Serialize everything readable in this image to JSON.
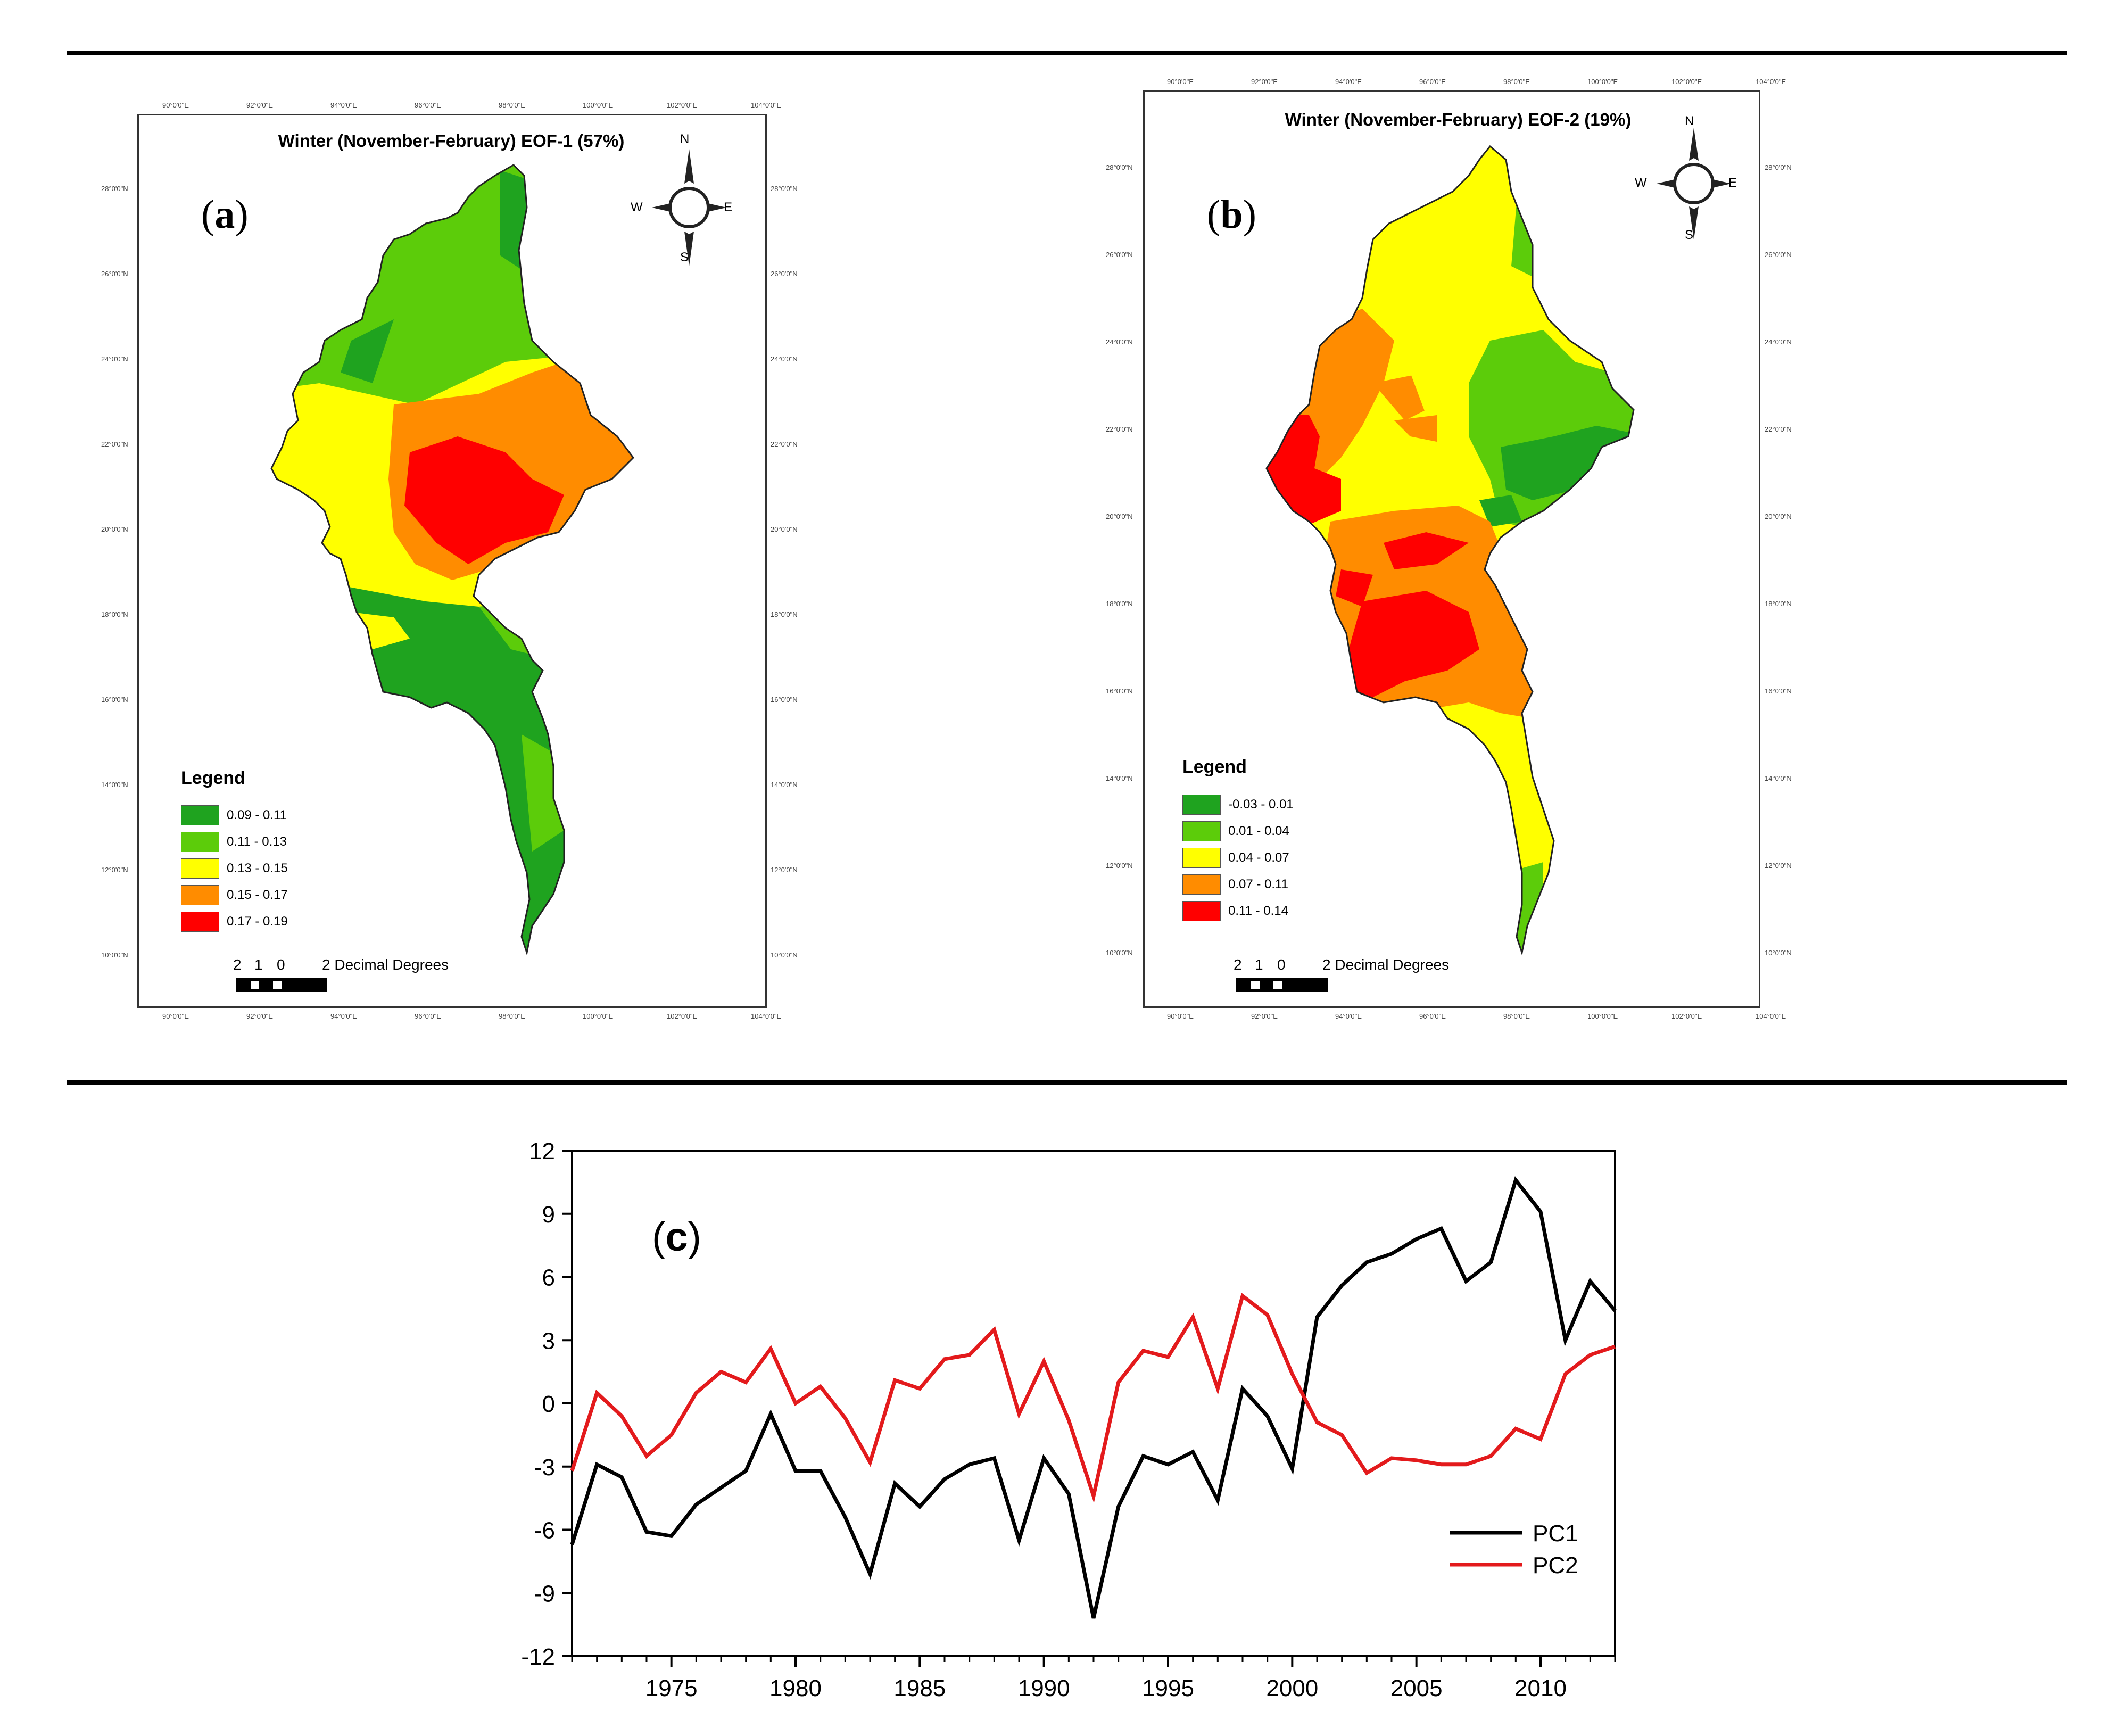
{
  "panel_a": {
    "label_letter": "a",
    "title": "Winter (November-February) EOF-1 (57%)",
    "legend": {
      "title": "Legend",
      "items": [
        {
          "label": "0.09 - 0.11",
          "color": "#1fa31f"
        },
        {
          "label": "0.11 - 0.13",
          "color": "#5ccc0a"
        },
        {
          "label": "0.13 - 0.15",
          "color": "#ffff00"
        },
        {
          "label": "0.15 - 0.17",
          "color": "#ff8c00"
        },
        {
          "label": "0.17 - 0.19",
          "color": "#ff0000"
        }
      ]
    }
  },
  "panel_b": {
    "label_letter": "b",
    "title": "Winter (November-February) EOF-2 (19%)",
    "legend": {
      "title": "Legend",
      "items": [
        {
          "label": "-0.03 - 0.01",
          "color": "#1fa31f"
        },
        {
          "label": "0.01 - 0.04",
          "color": "#5ccc0a"
        },
        {
          "label": "0.04 - 0.07",
          "color": "#ffff00"
        },
        {
          "label": "0.07 - 0.11",
          "color": "#ff8c00"
        },
        {
          "label": "0.11 - 0.14",
          "color": "#ff0000"
        }
      ]
    }
  },
  "map_common": {
    "lon_labels": [
      "90°0'0\"E",
      "92°0'0\"E",
      "94°0'0\"E",
      "96°0'0\"E",
      "98°0'0\"E",
      "100°0'0\"E",
      "102°0'0\"E",
      "104°0'0\"E"
    ],
    "lat_labels": [
      "28°0'0\"N",
      "26°0'0\"N",
      "24°0'0\"N",
      "22°0'0\"N",
      "20°0'0\"N",
      "18°0'0\"N",
      "16°0'0\"N",
      "14°0'0\"N",
      "12°0'0\"N",
      "10°0'0\"N"
    ],
    "compass": {
      "n": "N",
      "s": "S",
      "e": "E",
      "w": "W"
    },
    "scale_numbers": [
      "2",
      "1",
      "0"
    ],
    "scale_text": "2 Decimal Degrees"
  },
  "chart_data": {
    "type": "line",
    "panel_label": "c",
    "x": [
      1971,
      1972,
      1973,
      1974,
      1975,
      1976,
      1977,
      1978,
      1979,
      1980,
      1981,
      1982,
      1983,
      1984,
      1985,
      1986,
      1987,
      1988,
      1989,
      1990,
      1991,
      1992,
      1993,
      1994,
      1995,
      1996,
      1997,
      1998,
      1999,
      2000,
      2001,
      2002,
      2003,
      2004,
      2005,
      2006,
      2007,
      2008,
      2009,
      2010,
      2011,
      2012,
      2013
    ],
    "series": [
      {
        "name": "PC1",
        "color": "#000000",
        "values": [
          -6.7,
          -2.9,
          -3.5,
          -6.1,
          -6.3,
          -4.8,
          -4.0,
          -3.2,
          -0.5,
          -3.2,
          -3.2,
          -5.4,
          -8.1,
          -3.8,
          -4.9,
          -3.6,
          -2.9,
          -2.6,
          -6.5,
          -2.6,
          -4.3,
          -10.2,
          -4.9,
          -2.5,
          -2.9,
          -2.3,
          -4.6,
          0.7,
          -0.6,
          -3.1,
          4.1,
          5.6,
          6.7,
          7.1,
          7.8,
          8.3,
          5.8,
          6.7,
          10.6,
          9.1,
          3.0,
          5.8,
          4.4
        ]
      },
      {
        "name": "PC2",
        "color": "#e31a1c",
        "values": [
          -3.2,
          0.5,
          -0.6,
          -2.5,
          -1.5,
          0.5,
          1.5,
          1.0,
          2.6,
          0.0,
          0.8,
          -0.7,
          -2.8,
          1.1,
          0.7,
          2.1,
          2.3,
          3.5,
          -0.5,
          2.0,
          -0.8,
          -4.4,
          1.0,
          2.5,
          2.2,
          4.1,
          0.7,
          5.1,
          4.2,
          1.4,
          -0.9,
          -1.5,
          -3.3,
          -2.6,
          -2.7,
          -2.9,
          -2.9,
          -2.5,
          -1.2,
          -1.7,
          1.4,
          2.3,
          2.7
        ]
      }
    ],
    "yticks": [
      12,
      9,
      6,
      3,
      0,
      -3,
      -6,
      -9,
      -12
    ],
    "xticks": [
      1975,
      1980,
      1985,
      1990,
      1995,
      2000,
      2005,
      2010
    ],
    "ylim": [
      -12,
      12
    ],
    "xlim": [
      1971,
      2013
    ],
    "xlabel": "",
    "ylabel": "",
    "title": "",
    "legend_position": "lower-right"
  }
}
